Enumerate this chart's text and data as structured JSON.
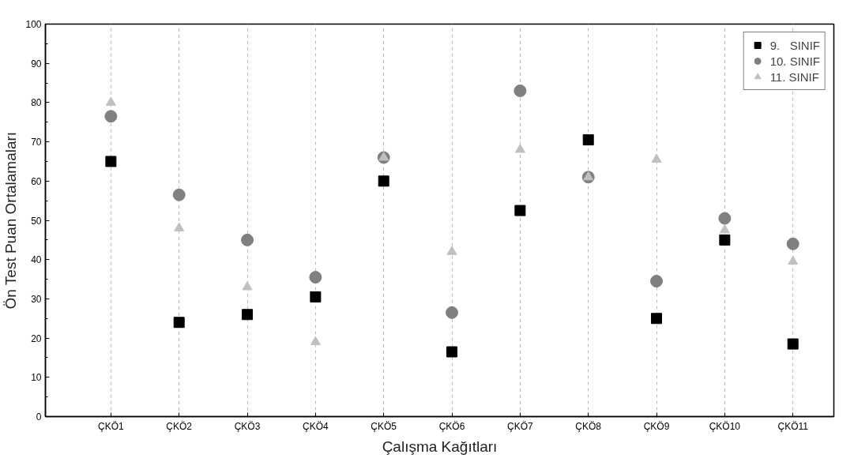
{
  "chart_data": {
    "type": "scatter",
    "xlabel": "Çalışma Kağıtları",
    "ylabel": "Ön Test Puan Ortalamaları",
    "categories": [
      "ÇKÖ1",
      "ÇKÖ2",
      "ÇKÖ3",
      "ÇKÖ4",
      "ÇKÖ5",
      "ÇKÖ6",
      "ÇKÖ7",
      "ÇKÖ8",
      "ÇKÖ9",
      "ÇKÖ10",
      "ÇKÖ11"
    ],
    "series": [
      {
        "name": "9.   SINIF",
        "color": "#000000",
        "marker": "square",
        "values": [
          65,
          24,
          26,
          30.5,
          60,
          16.5,
          52.5,
          70.5,
          25,
          45,
          18.5
        ]
      },
      {
        "name": "10. SINIF",
        "color": "#808080",
        "marker": "circle",
        "values": [
          76.5,
          56.5,
          45,
          35.5,
          66,
          26.5,
          83,
          61,
          34.5,
          50.5,
          44
        ]
      },
      {
        "name": "11. SINIF",
        "color": "#c0c0c0",
        "marker": "triangle",
        "values": [
          80,
          48,
          33,
          19,
          66,
          42,
          68,
          61,
          65.5,
          47.5,
          39.5
        ]
      }
    ],
    "ylim": [
      0,
      100
    ],
    "yticks": [
      0,
      10,
      20,
      30,
      40,
      50,
      60,
      70,
      80,
      90,
      100
    ],
    "grid": "x",
    "legend": "top right"
  }
}
